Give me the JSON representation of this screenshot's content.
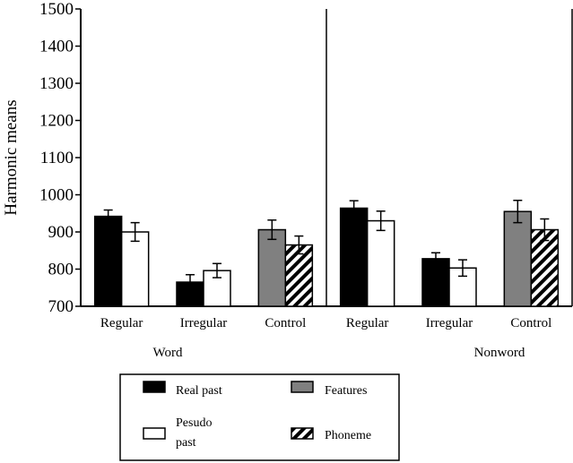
{
  "chart_data": {
    "type": "bar",
    "ylabel": "Harmonic means",
    "xlabel": "",
    "ylim": [
      700,
      1500
    ],
    "yticks": [
      700,
      800,
      900,
      1000,
      1100,
      1200,
      1300,
      1400,
      1500
    ],
    "error_bars": true,
    "panels": [
      {
        "label": "Word",
        "categories": [
          {
            "label": "Regular",
            "series": [
              "Real past",
              "Pesudo past"
            ],
            "values": [
              942,
              900
            ],
            "errors": [
              17,
              25
            ]
          },
          {
            "label": "Irregular",
            "series": [
              "Real past",
              "Pesudo past"
            ],
            "values": [
              765,
              796
            ],
            "errors": [
              20,
              19
            ]
          },
          {
            "label": "Control",
            "series": [
              "Features",
              "Phoneme"
            ],
            "values": [
              906,
              865
            ],
            "errors": [
              26,
              24
            ]
          }
        ]
      },
      {
        "label": "Nonword",
        "categories": [
          {
            "label": "Regular",
            "series": [
              "Real past",
              "Pesudo past"
            ],
            "values": [
              964,
              930
            ],
            "errors": [
              20,
              26
            ]
          },
          {
            "label": "Irregular",
            "series": [
              "Real past",
              "Pesudo past"
            ],
            "values": [
              828,
              803
            ],
            "errors": [
              16,
              22
            ]
          },
          {
            "label": "Control",
            "series": [
              "Features",
              "Phoneme"
            ],
            "values": [
              955,
              906
            ],
            "errors": [
              30,
              29
            ]
          }
        ]
      }
    ],
    "legend": {
      "position": "bottom",
      "entries": [
        {
          "name": "Real past",
          "label_lines": [
            "Real past"
          ],
          "style": "solid",
          "color": "#000000"
        },
        {
          "name": "Features",
          "label_lines": [
            "Features"
          ],
          "style": "solid",
          "color": "#808080"
        },
        {
          "name": "Pesudo past",
          "label_lines": [
            "Pesudo",
            "past"
          ],
          "style": "solid",
          "color": "#ffffff"
        },
        {
          "name": "Phoneme",
          "label_lines": [
            "Phoneme"
          ],
          "style": "hatch",
          "color": "#000000"
        }
      ]
    }
  }
}
